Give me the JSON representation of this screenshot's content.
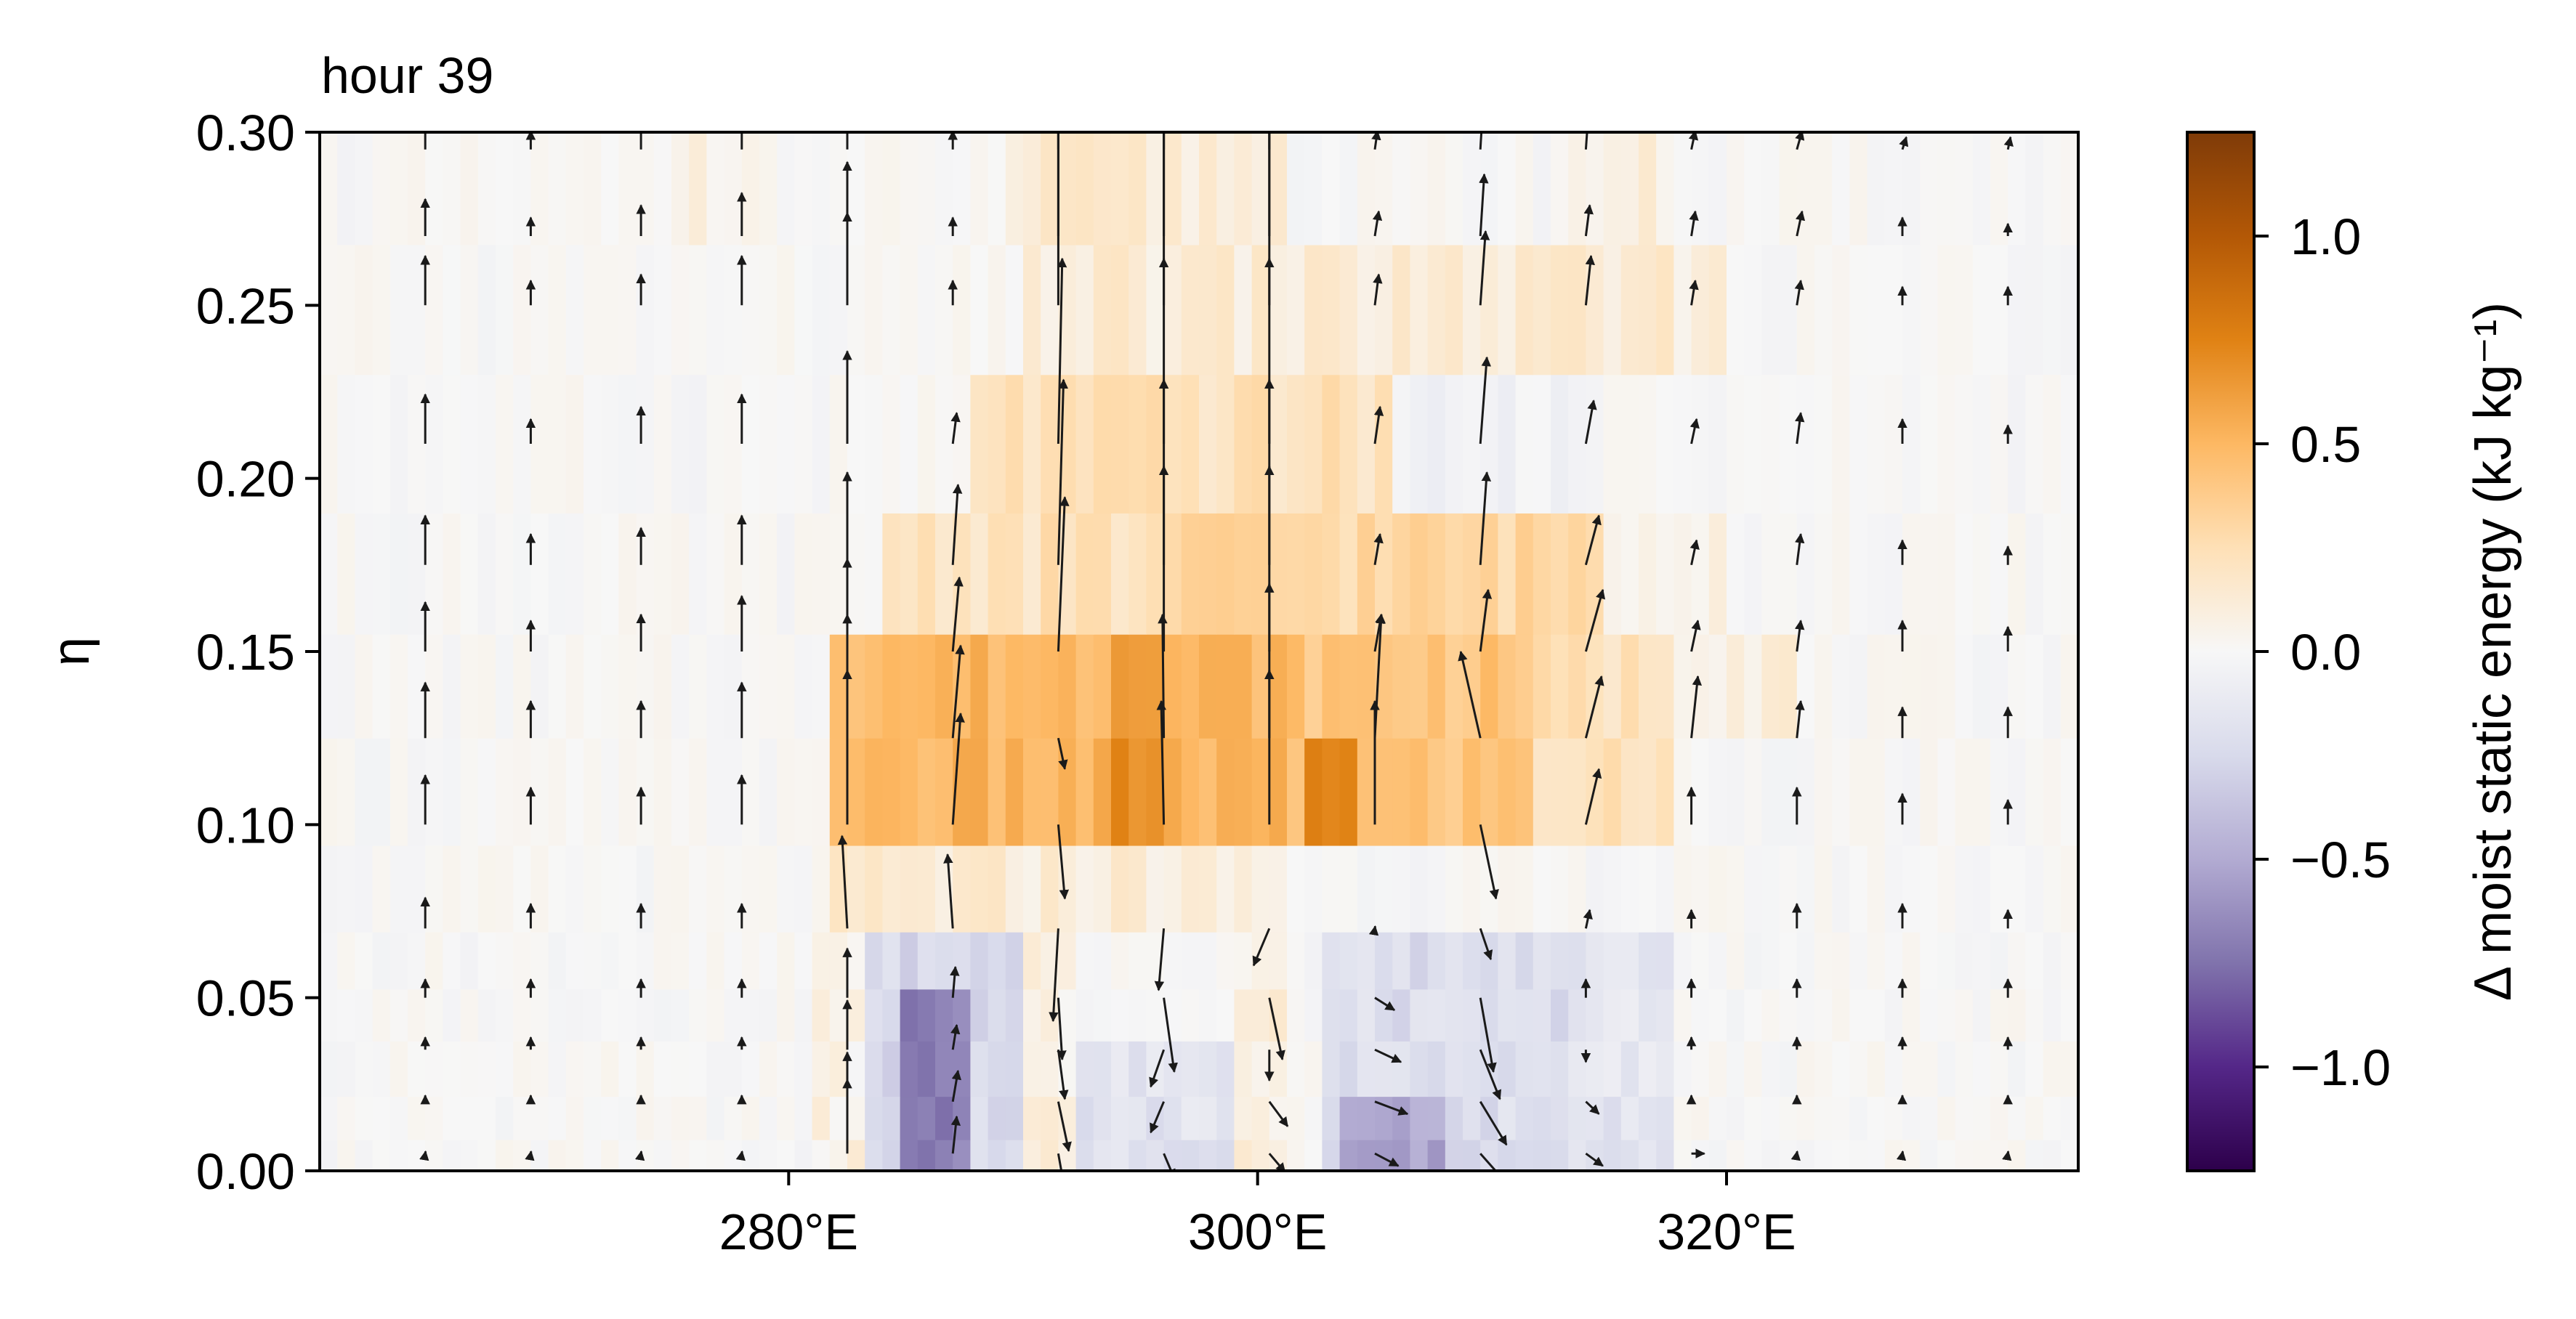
{
  "chart_data": {
    "type": "heatmap",
    "title": "hour 39",
    "xlabel": "",
    "ylabel": "η",
    "xlim": [
      260,
      335
    ],
    "ylim": [
      0.0,
      0.3
    ],
    "x_ticks": [
      280,
      300,
      320
    ],
    "x_tick_labels": [
      "280°E",
      "300°E",
      "320°E"
    ],
    "y_ticks": [
      0.0,
      0.05,
      0.1,
      0.15,
      0.2,
      0.25,
      0.3
    ],
    "y_tick_labels": [
      "0.00",
      "0.05",
      "0.10",
      "0.15",
      "0.20",
      "0.25",
      "0.30"
    ],
    "colorbar": {
      "label": "Δ moist static energy (kJ kg⁻¹)",
      "range": [
        -1.25,
        1.25
      ],
      "ticks": [
        -1.0,
        -0.5,
        0.0,
        0.5,
        1.0
      ],
      "tick_labels": [
        "−1.0",
        "−0.5",
        "0.0",
        "0.5",
        "1.0"
      ],
      "colormap": "PuOr_r",
      "stops": [
        "#2d004b",
        "#542788",
        "#8073ac",
        "#b2abd2",
        "#d8daeb",
        "#f7f7f7",
        "#fee0b6",
        "#fdb863",
        "#e08214",
        "#b35806",
        "#7f3b08"
      ]
    },
    "heat_levels": [
      0.005,
      0.013,
      0.03,
      0.045,
      0.06,
      0.078,
      0.11,
      0.14,
      0.17,
      0.21,
      0.25,
      0.285
    ],
    "heat_x_range": [
      260,
      335
    ],
    "heat_x_step": 0.75,
    "heat_anomalies": [
      {
        "x0": 281.5,
        "x1": 301.0,
        "y0": 0.1,
        "y1": 0.155,
        "v": 0.5
      },
      {
        "x0": 301.0,
        "x1": 312.0,
        "y0": 0.1,
        "y1": 0.155,
        "v": 0.42
      },
      {
        "x0": 302.0,
        "x1": 304.0,
        "y0": 0.1,
        "y1": 0.125,
        "v": 0.35
      },
      {
        "x0": 294.0,
        "x1": 296.0,
        "y0": 0.1,
        "y1": 0.155,
        "v": 0.2
      },
      {
        "x0": 312.0,
        "x1": 318.0,
        "y0": 0.1,
        "y1": 0.155,
        "v": 0.22
      },
      {
        "x0": 318.0,
        "x1": 323.0,
        "y0": 0.125,
        "y1": 0.155,
        "v": 0.12
      },
      {
        "x0": 284.0,
        "x1": 296.0,
        "y0": 0.155,
        "y1": 0.19,
        "v": 0.22
      },
      {
        "x0": 296.0,
        "x1": 315.0,
        "y0": 0.155,
        "y1": 0.19,
        "v": 0.3
      },
      {
        "x0": 315.0,
        "x1": 320.0,
        "y0": 0.155,
        "y1": 0.19,
        "v": 0.1
      },
      {
        "x0": 288.0,
        "x1": 306.0,
        "y0": 0.19,
        "y1": 0.23,
        "v": 0.22
      },
      {
        "x0": 306.0,
        "x1": 313.0,
        "y0": 0.19,
        "y1": 0.23,
        "v": -0.05
      },
      {
        "x0": 290.0,
        "x1": 320.0,
        "y0": 0.23,
        "y1": 0.27,
        "v": 0.12
      },
      {
        "x0": 275.0,
        "x1": 279.0,
        "y0": 0.27,
        "y1": 0.3,
        "v": 0.1
      },
      {
        "x0": 289.0,
        "x1": 301.0,
        "y0": 0.27,
        "y1": 0.3,
        "v": 0.12
      },
      {
        "x0": 313.0,
        "x1": 318.0,
        "y0": 0.27,
        "y1": 0.3,
        "v": 0.08
      },
      {
        "x0": 281.5,
        "x1": 296.0,
        "y0": 0.078,
        "y1": 0.1,
        "v": 0.12
      },
      {
        "x0": 296.0,
        "x1": 301.0,
        "y0": 0.078,
        "y1": 0.1,
        "v": 0.08
      },
      {
        "x0": 283.0,
        "x1": 290.0,
        "y0": 0.0,
        "y1": 0.078,
        "v": -0.25
      },
      {
        "x0": 285.0,
        "x1": 288.0,
        "y0": 0.0,
        "y1": 0.06,
        "v": -0.45
      },
      {
        "x0": 292.0,
        "x1": 299.0,
        "y0": 0.0,
        "y1": 0.04,
        "v": -0.18
      },
      {
        "x0": 303.0,
        "x1": 313.0,
        "y0": 0.0,
        "y1": 0.078,
        "v": -0.22
      },
      {
        "x0": 303.5,
        "x1": 308.0,
        "y0": 0.0,
        "y1": 0.03,
        "v": -0.3
      },
      {
        "x0": 313.0,
        "x1": 318.0,
        "y0": 0.0,
        "y1": 0.078,
        "v": -0.15
      },
      {
        "x0": 290.0,
        "x1": 292.0,
        "y0": 0.0,
        "y1": 0.078,
        "v": 0.08
      },
      {
        "x0": 299.0,
        "x1": 301.0,
        "y0": 0.0,
        "y1": 0.078,
        "v": 0.1
      },
      {
        "x0": 281.0,
        "x1": 283.0,
        "y0": 0.0,
        "y1": 0.078,
        "v": 0.06
      }
    ],
    "quiver_x": [
      264.5,
      269,
      273.7,
      278,
      282.5,
      287,
      291.5,
      296,
      300.5,
      305,
      309.5,
      314,
      318.5,
      323,
      327.5,
      332
    ],
    "quiver_levels": [
      0.005,
      0.02,
      0.035,
      0.05,
      0.07,
      0.1,
      0.125,
      0.15,
      0.175,
      0.21,
      0.25,
      0.27,
      0.295
    ],
    "quiver_u": [
      [
        0,
        0,
        0,
        0,
        0,
        0.3,
        0.5,
        0.8,
        1.2,
        1.8,
        2.5,
        1.3,
        1.0,
        0,
        0,
        0
      ],
      [
        0,
        0,
        0,
        0,
        0,
        0.4,
        0.8,
        -1.0,
        1.4,
        2.5,
        2.0,
        1.0,
        0,
        0,
        0,
        0
      ],
      [
        0,
        0,
        0,
        0,
        0,
        0.3,
        0.5,
        -1.0,
        0,
        2.0,
        1.5,
        0,
        0,
        0,
        0,
        0
      ],
      [
        0,
        0,
        0,
        0,
        0,
        0.2,
        0.3,
        0.8,
        1.0,
        1.5,
        1.0,
        0,
        0,
        0,
        0,
        0
      ],
      [
        0,
        0,
        0,
        0,
        -0.4,
        -0.4,
        -0.4,
        -0.4,
        -1.2,
        0,
        0.8,
        0.3,
        0,
        0,
        0,
        0
      ],
      [
        0,
        0,
        0,
        0,
        0,
        0.6,
        0.5,
        -0.2,
        0,
        0,
        1.2,
        1.0,
        0,
        0,
        0,
        0
      ],
      [
        0,
        0,
        0,
        0,
        0,
        0.6,
        0.5,
        -0.1,
        0,
        0.5,
        -1.5,
        1.2,
        0.5,
        0.3,
        0,
        0
      ],
      [
        0,
        0,
        0,
        0,
        0,
        0.5,
        0.5,
        0,
        0,
        0.5,
        0.6,
        1.3,
        0.5,
        0.3,
        0,
        0
      ],
      [
        0,
        0,
        0,
        0,
        0,
        0.4,
        0.4,
        0,
        0,
        0.4,
        0.5,
        1.0,
        0.4,
        0.3,
        0,
        0
      ],
      [
        0,
        0,
        0,
        0,
        0,
        0.3,
        0.3,
        0,
        0,
        0.4,
        0.5,
        0.6,
        0.4,
        0.3,
        0,
        0
      ],
      [
        0,
        0,
        0,
        0,
        0,
        0,
        0,
        0,
        0,
        0.3,
        0.4,
        0.4,
        0.3,
        0.3,
        0,
        0
      ],
      [
        0,
        0,
        0,
        0,
        0,
        0,
        0,
        0,
        0,
        0.3,
        0.3,
        0.3,
        0.3,
        0.4,
        0,
        0
      ],
      [
        0,
        0,
        0,
        0,
        0,
        0,
        0,
        0,
        0,
        0.2,
        0.2,
        0.2,
        0.3,
        0.4,
        0.3,
        0.2
      ]
    ],
    "quiver_v": [
      [
        0,
        0,
        0,
        0,
        1.2,
        0.6,
        -0.6,
        -0.4,
        -0.3,
        -0.2,
        -0.6,
        -0.2,
        0,
        0,
        0,
        0
      ],
      [
        0.1,
        0.1,
        0.1,
        0.1,
        0.8,
        0.5,
        -0.8,
        -0.5,
        -0.4,
        -0.2,
        -0.7,
        -0.2,
        0.1,
        0.1,
        0.1,
        0.1
      ],
      [
        0.2,
        0.2,
        0.2,
        0.2,
        0.8,
        0.4,
        -0.8,
        -0.6,
        -0.5,
        -0.2,
        -0.8,
        -0.2,
        0.2,
        0.2,
        0.2,
        0.2
      ],
      [
        0.3,
        0.3,
        0.3,
        0.3,
        0.8,
        0.5,
        -1.0,
        -1.2,
        -1.0,
        -0.2,
        -1.2,
        0.3,
        0.3,
        0.3,
        0.3,
        0.3
      ],
      [
        0.5,
        0.4,
        0.4,
        0.4,
        1.5,
        1.2,
        -1.5,
        -1.0,
        -0.6,
        0,
        -0.5,
        0.3,
        0.3,
        0.4,
        0.4,
        0.3
      ],
      [
        0.8,
        0.6,
        0.6,
        0.8,
        2.5,
        1.8,
        -1.2,
        2.0,
        2.5,
        2.0,
        -1.2,
        0.9,
        0.6,
        0.6,
        0.5,
        0.4
      ],
      [
        0.9,
        0.6,
        0.6,
        0.9,
        2.0,
        1.5,
        -0.5,
        2.0,
        2.5,
        2.0,
        1.4,
        1.0,
        1.0,
        0.6,
        0.5,
        0.5
      ],
      [
        0.8,
        0.5,
        0.6,
        0.9,
        1.5,
        1.2,
        2.5,
        3.0,
        3.0,
        0.6,
        1.0,
        1.0,
        0.5,
        0.5,
        0.5,
        0.4
      ],
      [
        0.8,
        0.5,
        0.6,
        0.8,
        1.5,
        1.3,
        3.0,
        3.0,
        3.0,
        0.5,
        1.5,
        0.8,
        0.4,
        0.5,
        0.4,
        0.3
      ],
      [
        0.8,
        0.4,
        0.6,
        0.8,
        1.5,
        0.5,
        3.0,
        3.0,
        3.0,
        0.6,
        1.4,
        0.7,
        0.4,
        0.5,
        0.4,
        0.3
      ],
      [
        0.8,
        0.4,
        0.5,
        0.8,
        1.5,
        0.4,
        3.0,
        3.0,
        3.0,
        0.5,
        1.2,
        0.8,
        0.4,
        0.4,
        0.3,
        0.3
      ],
      [
        0.6,
        0.3,
        0.5,
        0.7,
        1.2,
        0.3,
        2.5,
        2.5,
        2.5,
        0.4,
        1.0,
        0.5,
        0.4,
        0.4,
        0.3,
        0.2
      ],
      [
        0.6,
        0.3,
        0.4,
        0.5,
        1.0,
        0.3,
        2.0,
        2.0,
        2.0,
        0.3,
        0.7,
        0.6,
        0.3,
        0.3,
        0.2,
        0.2
      ]
    ]
  }
}
